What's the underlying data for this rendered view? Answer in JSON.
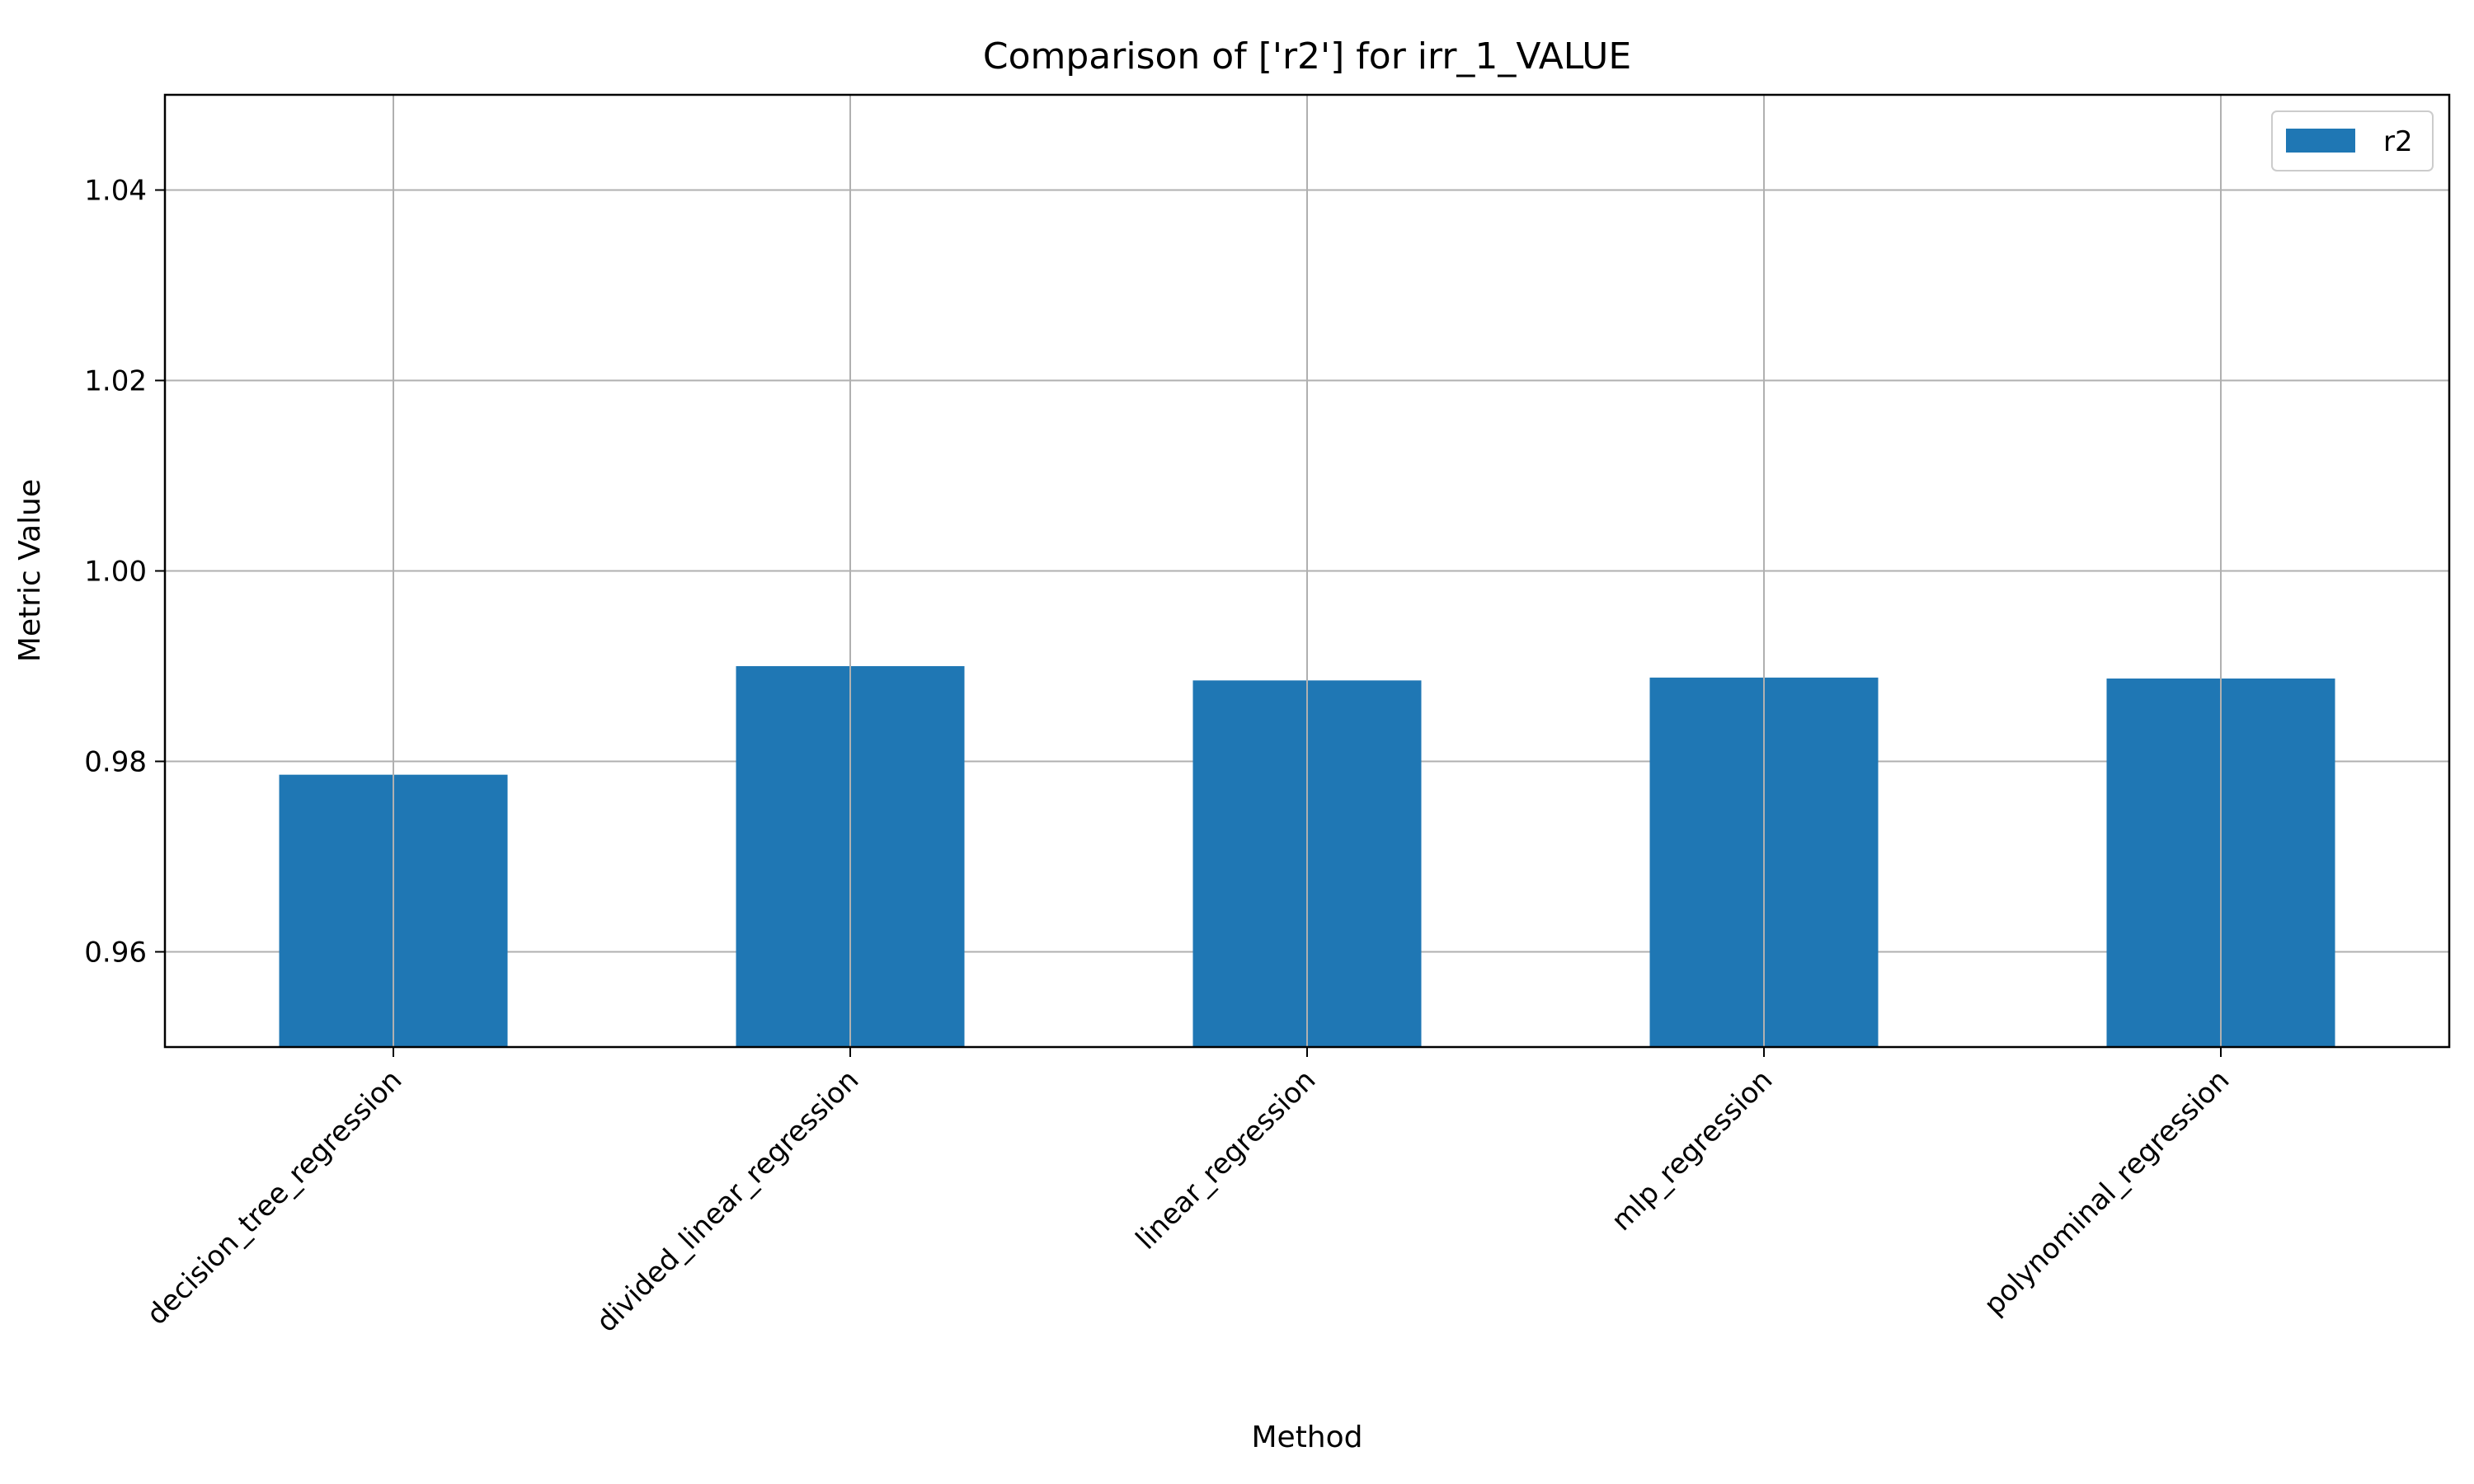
{
  "chart_data": {
    "type": "bar",
    "title": "Comparison of ['r2'] for irr_1_VALUE",
    "xlabel": "Method",
    "ylabel": "Metric Value",
    "categories": [
      "decision_tree_regression",
      "divided_linear_regression",
      "linear_regression",
      "mlp_regression",
      "polynominal_regression"
    ],
    "series": [
      {
        "name": "r2",
        "values": [
          0.9786,
          0.99,
          0.9885,
          0.9888,
          0.9887
        ],
        "color": "#1f77b4"
      }
    ],
    "ylim": [
      0.95,
      1.05
    ],
    "yticks": [
      0.96,
      0.98,
      1.0,
      1.02,
      1.04
    ],
    "ytick_labels": [
      "0.96",
      "0.98",
      "1.00",
      "1.02",
      "1.04"
    ],
    "grid": true,
    "legend_position": "top-right"
  }
}
